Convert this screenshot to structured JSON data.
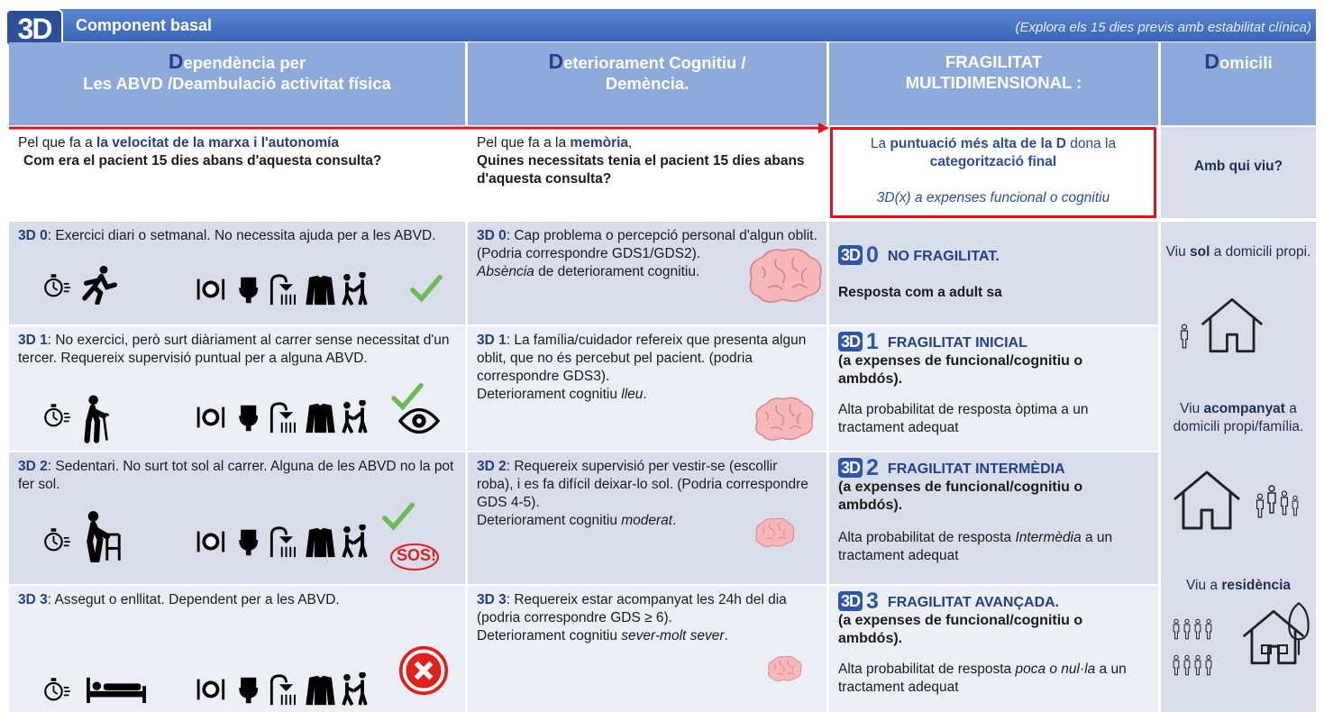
{
  "header": {
    "logo": "3D",
    "title": "Component basal",
    "note": "(Explora els 15 dies previs amb estabilitat clínica)"
  },
  "columns": [
    {
      "initial": "D",
      "line1": "ependència per",
      "line2": "Les ABVD /Deambulació activitat física"
    },
    {
      "initial": "D",
      "line1": "eteriorament Cognitiu /",
      "line2": "Demència."
    },
    {
      "line1": "FRAGILITAT",
      "line2": "MULTIDIMENSIONAL :"
    },
    {
      "initial": "D",
      "line1": "omicili"
    }
  ],
  "questions": {
    "functional": {
      "lead": "Pel que fa a ",
      "focus": "la velocitat de la marxa i l'autonomía",
      "question": "Com era el pacient 15 dies abans d'aquesta consulta?"
    },
    "cognitive": {
      "lead": "Pel que fa a la ",
      "focus": "memòria",
      "comma": ",",
      "question": "Quines necessitats tenia el pacient 15 dies abans d'aquesta consulta?"
    },
    "frailty": {
      "part1": "La ",
      "part2": "puntuació més alta de la D",
      "part3": " dona la ",
      "part4": "categorització final",
      "note": "3D(x) a expenses funcional o cognitiu"
    },
    "home": "Amb qui viu?"
  },
  "functional_rows": [
    {
      "label": "3D 0",
      "text": ": Exercici diari o setmanal. No necessita ajuda per a les ABVD."
    },
    {
      "label": "3D 1",
      "text": ": No exercici, però surt diàriament al carrer sense necessitat d'un tercer. Requereix supervisió puntual per a alguna ABVD."
    },
    {
      "label": "3D 2",
      "text": ": Sedentari. No surt tot sol al carrer. Alguna de les ABVD no la pot fer sol.",
      "badge": "SOS!"
    },
    {
      "label": "3D 3",
      "text": ": Assegut o enllitat. Dependent per a les ABVD."
    }
  ],
  "cognitive_rows": [
    {
      "label": "3D 0",
      "text": ": Cap problema o percepció personal d'algun oblit. (Podria correspondre GDS1/GDS2).",
      "note_italic": "Absència",
      "note_after": " de deteriorament cognitiu."
    },
    {
      "label": "3D 1",
      "text": ": La família/cuidador refereix que presenta algun oblit, que no és  percebut pel pacient. (podria correspondre GDS3).",
      "note_before": "Deteriorament cognitiu ",
      "note_italic": "lleu",
      "note_after": "."
    },
    {
      "label": "3D 2",
      "text": ": Requereix supervisió per vestir-se (escollir roba), i es fa difícil deixar-lo sol. (Podria correspondre GDS 4-5).",
      "note_before": "Deteriorament cognitiu ",
      "note_italic": "moderat",
      "note_after": "."
    },
    {
      "label": "3D 3",
      "text": ": Requereix estar acompanyat les 24h del dia (podria correspondre GDS ≥ 6).",
      "note_before": "Deteriorament cognitiu ",
      "note_italic": "sever-molt sever",
      "note_after": "."
    }
  ],
  "frailty_rows": [
    {
      "number": "0",
      "title": "NO FRAGILITAT.",
      "detail": "Resposta com a adult sa"
    },
    {
      "number": "1",
      "title": "FRAGILITAT INICIAL",
      "scope": "(a expenses de funcional/cognitiu o ambdós).",
      "response_before": "Alta probabilitat de resposta òptima a un tractament adequat"
    },
    {
      "number": "2",
      "title": "FRAGILITAT INTERMÈDIA",
      "scope": "(a expenses de funcional/cognitiu o ambdós).",
      "response_before": "Alta probabilitat de resposta ",
      "response_italic": "Intermèdia",
      "response_after": " a un tractament adequat"
    },
    {
      "number": "3",
      "title": "FRAGILITAT AVANÇADA.",
      "scope": "(a expenses de funcional/cognitiu o ambdós).",
      "response_before": "Alta probabilitat de resposta ",
      "response_italic": "poca o nul·la",
      "response_after": " a un tractament adequat"
    }
  ],
  "home_rows": [
    {
      "before": "Viu ",
      "focus": "sol",
      "after": " a domicili propi."
    },
    {
      "before": "Viu ",
      "focus": "acompanyat",
      "after": " a domicili propi/família."
    },
    {
      "before": "Viu a ",
      "focus": "residència"
    }
  ]
}
